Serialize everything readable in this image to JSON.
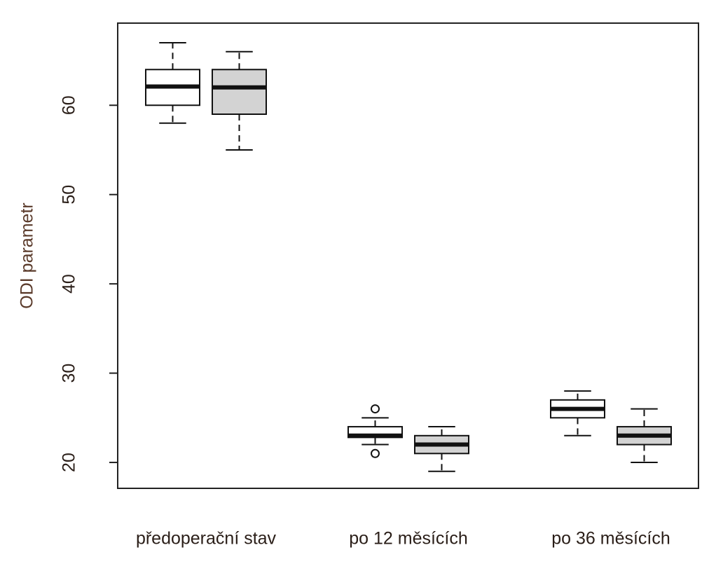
{
  "chart_data": {
    "type": "boxplot",
    "y_label": "ODI parametr",
    "categories": [
      "předoperační stav",
      "po 12 měsících",
      "po 36 měsících"
    ],
    "series": [
      {
        "color": "#ffffff",
        "boxes": [
          {
            "whislo": 58,
            "q1": 60,
            "med": 62.1,
            "q3": 64,
            "whishi": 67
          },
          {
            "whislo": 22,
            "q1": 22.8,
            "med": 23,
            "q3": 24,
            "whishi": 25,
            "outliers": [
              26,
              21
            ]
          },
          {
            "whislo": 23,
            "q1": 25,
            "med": 26,
            "q3": 27,
            "whishi": 28
          }
        ]
      },
      {
        "color": "#d3d3d3",
        "boxes": [
          {
            "whislo": 55,
            "q1": 59,
            "med": 62,
            "q3": 64,
            "whishi": 66
          },
          {
            "whislo": 19,
            "q1": 21,
            "med": 22,
            "q3": 23,
            "whishi": 24
          },
          {
            "whislo": 20,
            "q1": 22,
            "med": 23,
            "q3": 24,
            "whishi": 26
          }
        ]
      }
    ],
    "ylim": [
      17.1,
      69.2
    ],
    "yticks": [
      20,
      30,
      40,
      50,
      60
    ]
  }
}
